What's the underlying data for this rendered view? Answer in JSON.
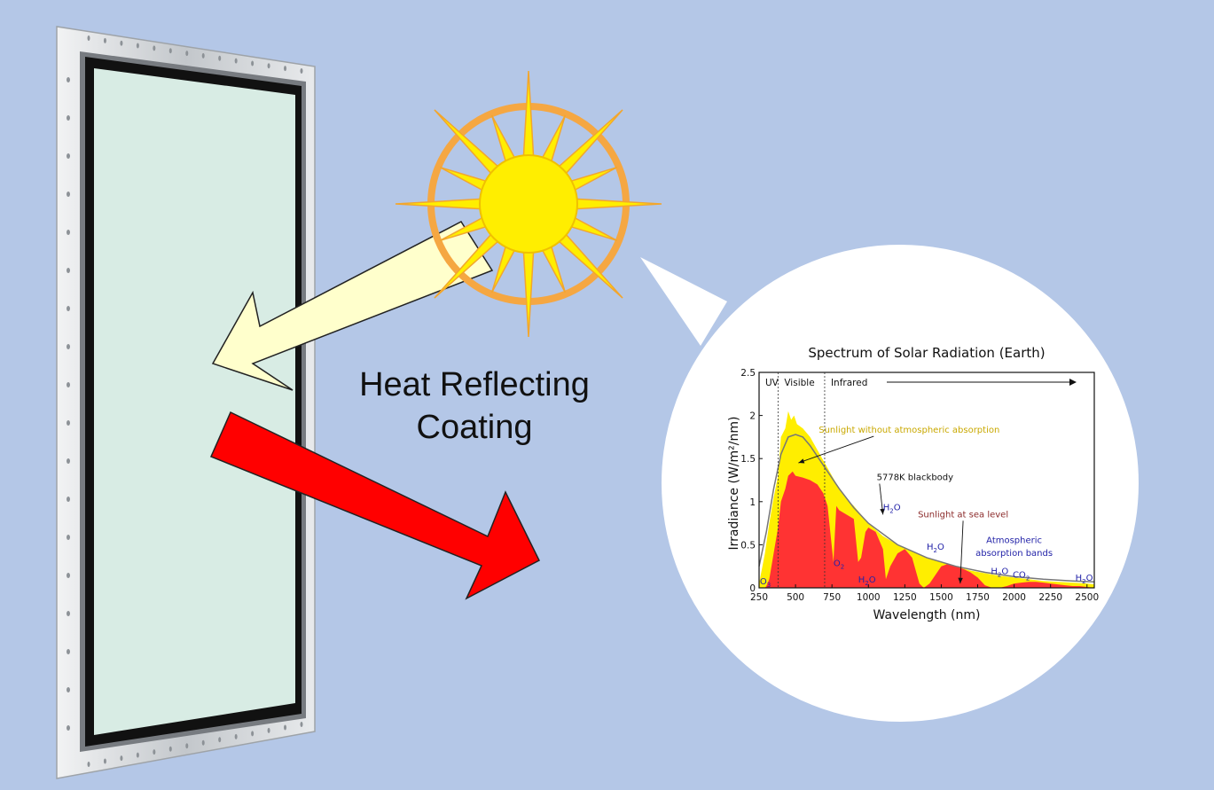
{
  "caption": {
    "line1": "Heat Reflecting",
    "line2": "Coating"
  },
  "colors": {
    "background": "#b4c7e7",
    "sun": "#ffee00",
    "sun_ring": "#f5a742",
    "light_arrow": "#ffffcc",
    "heat_arrow": "#ff0000",
    "glass": "#d8ece4",
    "frame": "#c9ccd0"
  },
  "icons": [
    "sun-icon",
    "window-pane",
    "reflected-light-arrow",
    "transmitted-heat-arrow",
    "magnifier-callout"
  ],
  "chart_data": {
    "type": "area",
    "title": "Spectrum of Solar Radiation (Earth)",
    "xlabel": "Wavelength (nm)",
    "ylabel": "Irradiance (W/m²/nm)",
    "xlim": [
      250,
      2550
    ],
    "ylim": [
      0,
      2.5
    ],
    "x_ticks": [
      250,
      500,
      750,
      1000,
      1250,
      1500,
      1750,
      2000,
      2250,
      2500
    ],
    "y_ticks": [
      0,
      0.5,
      1,
      1.5,
      2,
      2.5
    ],
    "y_tick_labels": [
      "0",
      "0.5",
      "1",
      "1.5",
      "2",
      "2.5"
    ],
    "regions": [
      {
        "label": "UV"
      },
      {
        "label": "Visible",
        "start": 380
      },
      {
        "label": "Infrared",
        "start": 700
      }
    ],
    "series": [
      {
        "name": "Sunlight without atmospheric absorption",
        "color": "#ffee00",
        "x": [
          250,
          290,
          320,
          350,
          380,
          400,
          430,
          450,
          470,
          490,
          510,
          550,
          600,
          650,
          700,
          750,
          800,
          850,
          900,
          1000,
          1100,
          1200,
          1300,
          1400,
          1500,
          1600,
          1700,
          1800,
          1900,
          2000,
          2100,
          2200,
          2300,
          2400,
          2500,
          2550
        ],
        "y": [
          0.05,
          0.4,
          0.75,
          1.05,
          1.3,
          1.75,
          1.85,
          2.05,
          1.95,
          2.0,
          1.9,
          1.85,
          1.75,
          1.6,
          1.45,
          1.3,
          1.15,
          1.03,
          0.95,
          0.75,
          0.6,
          0.5,
          0.42,
          0.35,
          0.3,
          0.25,
          0.2,
          0.17,
          0.14,
          0.12,
          0.1,
          0.08,
          0.07,
          0.06,
          0.05,
          0.04
        ]
      },
      {
        "name": "Sunlight at sea level",
        "color": "#ff3333",
        "x": [
          250,
          290,
          300,
          320,
          350,
          380,
          400,
          430,
          450,
          480,
          500,
          550,
          600,
          650,
          690,
          700,
          720,
          760,
          780,
          800,
          850,
          900,
          930,
          950,
          980,
          1000,
          1050,
          1100,
          1120,
          1150,
          1200,
          1250,
          1300,
          1350,
          1380,
          1420,
          1500,
          1550,
          1600,
          1650,
          1700,
          1750,
          1800,
          1850,
          1900,
          1950,
          2000,
          2050,
          2100,
          2150,
          2200,
          2250,
          2300,
          2350,
          2400,
          2450,
          2500,
          2550
        ],
        "y": [
          0,
          0,
          0.02,
          0.1,
          0.4,
          0.7,
          1.0,
          1.15,
          1.3,
          1.35,
          1.3,
          1.28,
          1.25,
          1.2,
          1.1,
          1.05,
          0.95,
          0.3,
          0.95,
          0.9,
          0.85,
          0.8,
          0.3,
          0.35,
          0.65,
          0.7,
          0.65,
          0.45,
          0.1,
          0.25,
          0.4,
          0.45,
          0.35,
          0.05,
          0.0,
          0.05,
          0.25,
          0.28,
          0.25,
          0.22,
          0.18,
          0.12,
          0.03,
          0.0,
          0.0,
          0.02,
          0.05,
          0.06,
          0.07,
          0.07,
          0.06,
          0.05,
          0.04,
          0.03,
          0.02,
          0.02,
          0.01,
          0.0
        ]
      },
      {
        "name": "5778K blackbody",
        "color": "#777777",
        "x": [
          250,
          300,
          350,
          400,
          450,
          500,
          550,
          600,
          700,
          800,
          900,
          1000,
          1200,
          1400,
          1600,
          1800,
          2000,
          2200,
          2400,
          2550
        ],
        "y": [
          0.25,
          0.65,
          1.15,
          1.55,
          1.75,
          1.78,
          1.75,
          1.65,
          1.4,
          1.15,
          0.93,
          0.75,
          0.5,
          0.35,
          0.25,
          0.18,
          0.13,
          0.1,
          0.08,
          0.07
        ]
      }
    ],
    "annotations": [
      {
        "text": "Sunlight without atmospheric absorption",
        "x": 1280,
        "y": 1.8,
        "color": "#c9a800",
        "arrow_to": [
          520,
          1.45
        ]
      },
      {
        "text": "5778K blackbody",
        "x": 1320,
        "y": 1.25,
        "color": "#111111",
        "arrow_to": [
          1100,
          0.85
        ]
      },
      {
        "text": "Sunlight at sea level",
        "x": 1650,
        "y": 0.82,
        "color": "#8b2a2a",
        "arrow_to": [
          1630,
          0.05
        ]
      },
      {
        "text": "Atmospheric",
        "x": 2000,
        "y": 0.52,
        "color": "#2323a8"
      },
      {
        "text": "absorption bands",
        "x": 2000,
        "y": 0.37,
        "color": "#2323a8"
      }
    ],
    "absorption_labels": [
      {
        "main": "O",
        "sub": "3",
        "x": 255,
        "y": 0.04
      },
      {
        "main": "O",
        "sub": "2",
        "x": 760,
        "y": 0.25
      },
      {
        "main": "H",
        "sub": "2",
        "tail": "O",
        "x": 930,
        "y": 0.06
      },
      {
        "main": "H",
        "sub": "2",
        "tail": "O",
        "x": 1100,
        "y": 0.9
      },
      {
        "main": "H",
        "sub": "2",
        "tail": "O",
        "x": 1400,
        "y": 0.44
      },
      {
        "main": "H",
        "sub": "2",
        "tail": "O",
        "x": 1840,
        "y": 0.16
      },
      {
        "main": "CO",
        "sub": "2",
        "x": 1990,
        "y": 0.12
      },
      {
        "main": "H",
        "sub": "2",
        "tail": "O",
        "x": 2420,
        "y": 0.08
      }
    ]
  }
}
